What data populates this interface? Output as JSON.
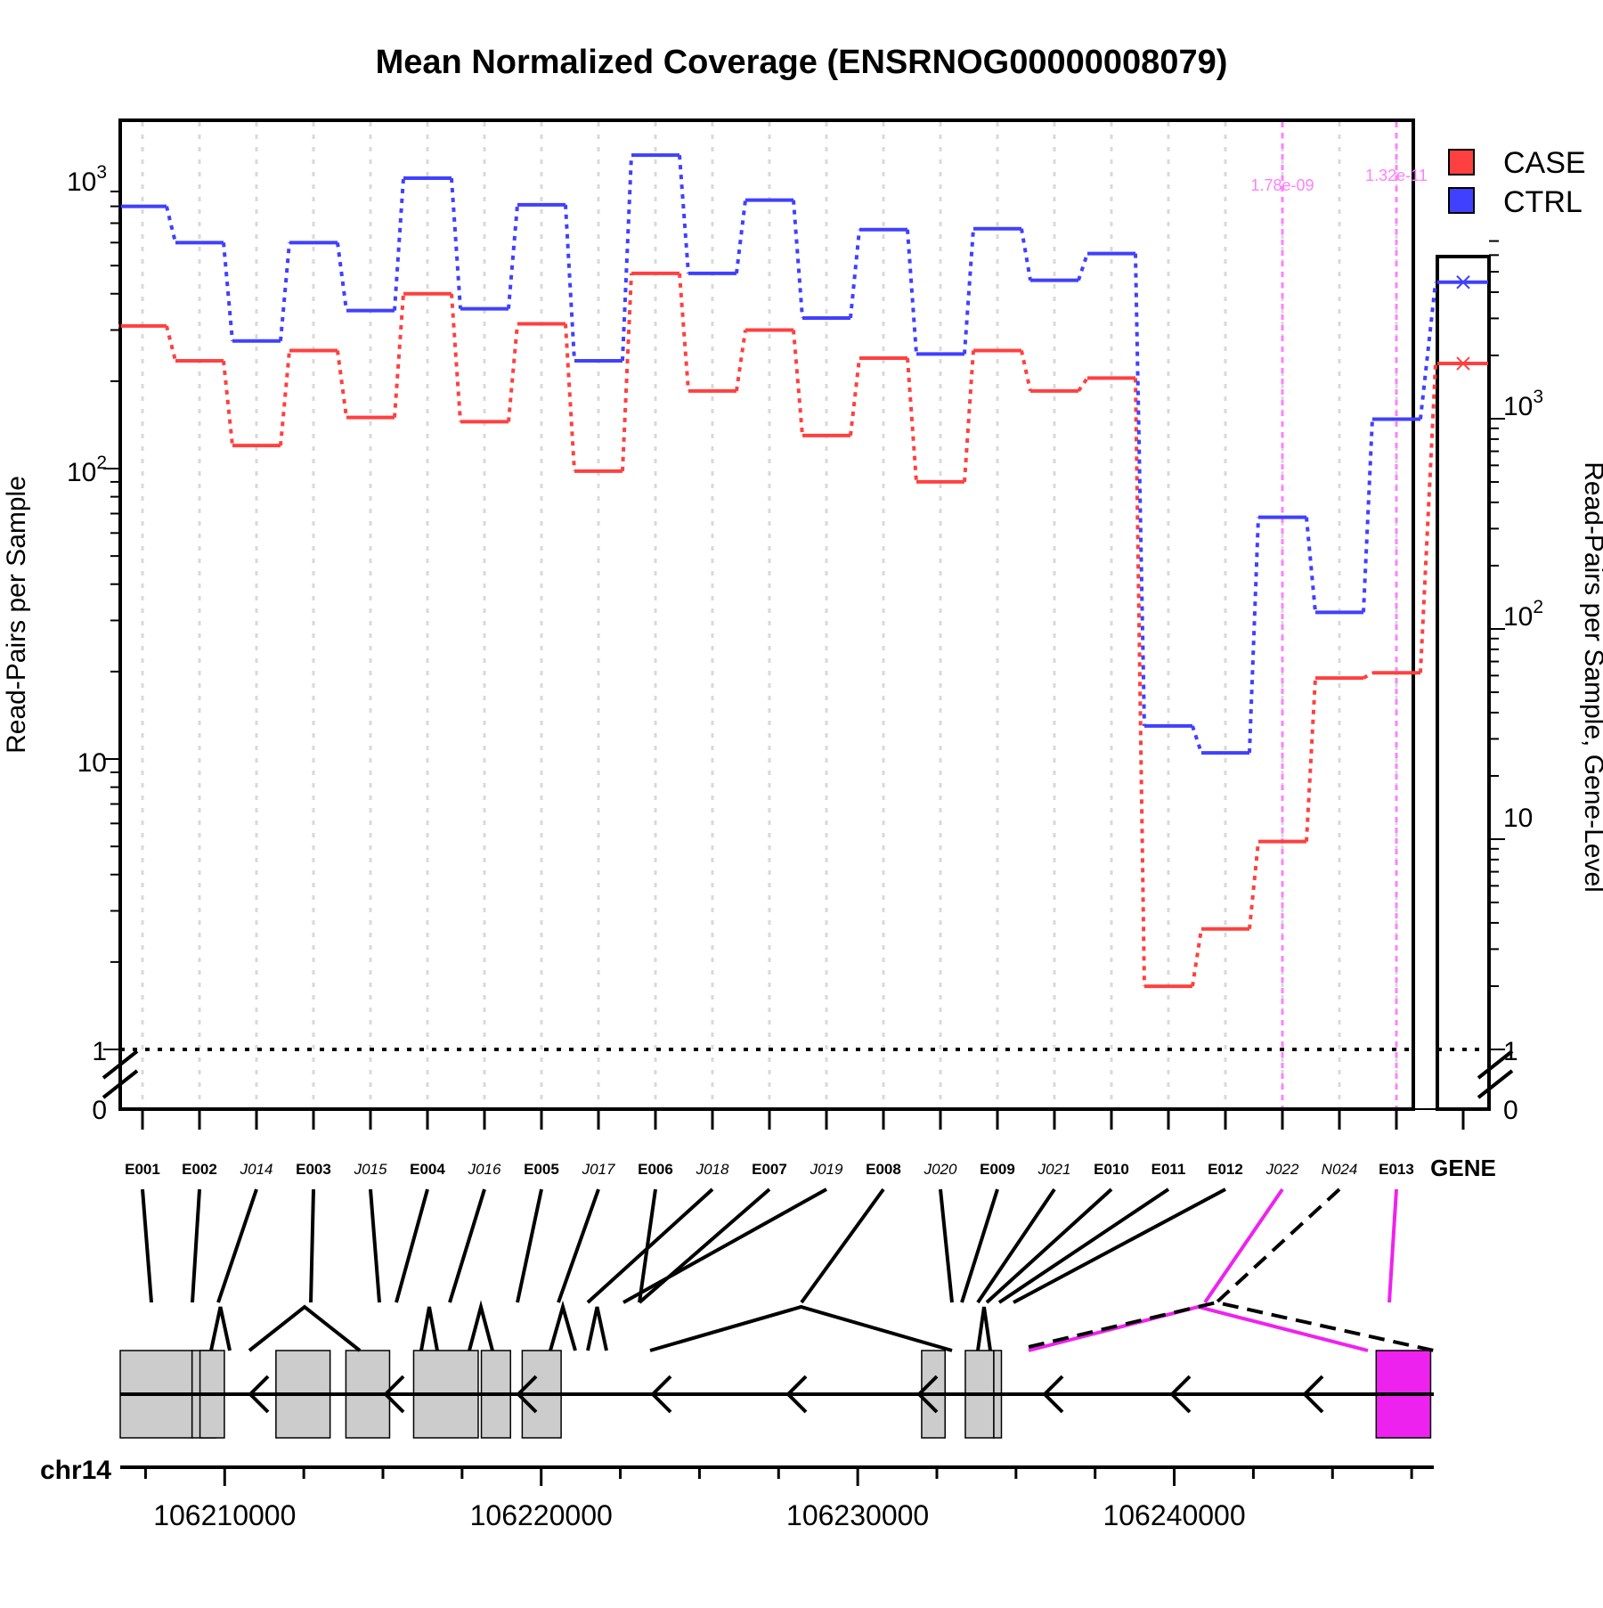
{
  "title": "Mean Normalized Coverage (ENSRNOG00000008079)",
  "colors": {
    "case": "#ff4040",
    "ctrl": "#4040ff",
    "highlight": "#ee22ee",
    "highlight_light": "#ff80ff",
    "exon_fill": "#cccccc",
    "grid": "#d9d9d9"
  },
  "axes": {
    "left_label": "Read-Pairs per Sample",
    "right_label": "Read-Pairs per Sample, Gene-Level",
    "scale": "log10",
    "left_ticks": [
      "10^3",
      "10^2",
      "10",
      "1",
      "0"
    ],
    "right_ticks": [
      "10^3",
      "10^2",
      "10",
      "1",
      "0"
    ],
    "left_range": [
      0,
      1650
    ],
    "right_range": [
      0,
      7000
    ],
    "reference_line": 1
  },
  "legend": {
    "placement": "top-right",
    "items": [
      {
        "label": "CASE",
        "color": "#ff4040"
      },
      {
        "label": "CTRL",
        "color": "#4040ff"
      }
    ]
  },
  "chart_data": {
    "type": "line",
    "categories": [
      "E001",
      "E002",
      "J014",
      "E003",
      "J015",
      "E004",
      "J016",
      "E005",
      "J017",
      "E006",
      "J018",
      "E007",
      "J019",
      "E008",
      "J020",
      "E009",
      "J021",
      "E010",
      "E011",
      "E012",
      "J022",
      "N024",
      "E013"
    ],
    "category_style": [
      "exon",
      "exon",
      "junction",
      "exon",
      "junction",
      "exon",
      "junction",
      "exon",
      "junction",
      "exon",
      "junction",
      "exon",
      "junction",
      "exon",
      "junction",
      "exon",
      "junction",
      "exon",
      "exon",
      "exon",
      "junction",
      "junction",
      "exon"
    ],
    "series": [
      {
        "name": "CASE",
        "color": "#ff4040",
        "values": [
          310,
          235,
          120,
          255,
          150,
          400,
          145,
          315,
          98,
          470,
          185,
          300,
          130,
          240,
          90,
          255,
          185,
          205,
          1.65,
          2.6,
          5.2,
          19,
          19.8
        ]
      },
      {
        "name": "CTRL",
        "color": "#4040ff",
        "values": [
          800,
          600,
          275,
          600,
          350,
          1000,
          355,
          810,
          235,
          1200,
          470,
          840,
          330,
          665,
          248,
          670,
          445,
          550,
          13,
          10.5,
          68,
          32,
          148
        ]
      }
    ],
    "gene_level": {
      "label": "GENE",
      "values": [
        {
          "name": "CASE",
          "value": 1830
        },
        {
          "name": "CTRL",
          "value": 4460
        }
      ]
    },
    "significant": [
      {
        "feature": "J022",
        "pvalue": "1.78e-09"
      },
      {
        "feature": "E013",
        "pvalue": "1.32e-11"
      }
    ]
  },
  "genome": {
    "chromosome": "chr14",
    "coord_range": [
      106206700,
      106248200
    ],
    "ticks": [
      "106210000",
      "106220000",
      "106230000",
      "106240000"
    ],
    "tick_values": [
      106210000,
      106220000,
      106230000,
      106240000
    ],
    "strand": "-"
  }
}
